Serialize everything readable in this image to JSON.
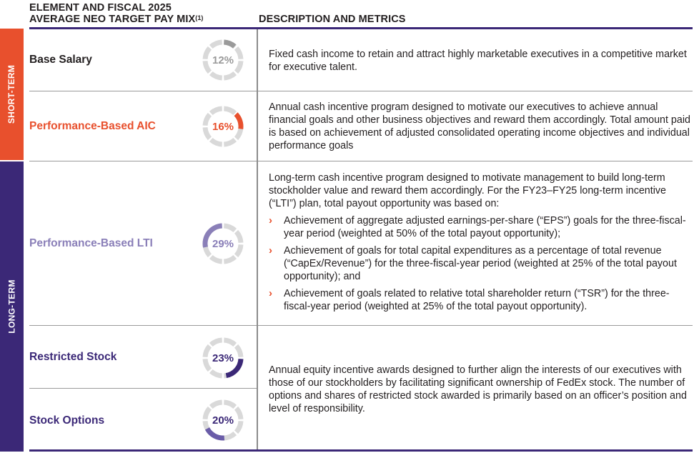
{
  "header": {
    "left_line1": "ELEMENT AND FISCAL 2025",
    "left_line2": "AVERAGE NEO TARGET PAY MIX",
    "left_footnote": "(1)",
    "right": "DESCRIPTION AND METRICS"
  },
  "side_labels": {
    "short_term": "SHORT-TERM",
    "long_term": "LONG-TERM"
  },
  "colors": {
    "orange": "#e8502d",
    "navy": "#3b2877",
    "lavender": "#8a7fb8",
    "gray": "#9a9a9a",
    "track": "#d9d9d9"
  },
  "rows": [
    {
      "label": "Base Salary",
      "percent_text": "12%",
      "percent": 12,
      "offset_percent": 0,
      "description": "Fixed cash income to retain and attract highly marketable executives in a competitive market for executive talent."
    },
    {
      "label": "Performance-Based AIC",
      "percent_text": "16%",
      "percent": 16,
      "offset_percent": 12,
      "description": "Annual cash incentive program designed to motivate our executives to achieve annual financial goals and other business objectives and reward them accordingly. Total amount paid is based on achievement of adjusted consolidated operating income objectives and individual performance goals"
    },
    {
      "label": "Performance-Based LTI",
      "percent_text": "29%",
      "percent": 29,
      "offset_percent": 71,
      "description": "Long-term cash incentive program designed to motivate management to build long-term stockholder value and reward them accordingly. For the FY23–FY25 long-term incentive (“LTI”) plan, total payout opportunity was based on:",
      "bullets": [
        "Achievement of aggregate adjusted earnings-per-share (“EPS”) goals for the three-fiscal-year period (weighted at 50% of the total payout opportunity);",
        "Achievement of goals for total capital expenditures as a percentage of total revenue (“CapEx/Revenue”) for the three-fiscal-year period (weighted at 25% of the total payout opportunity); and",
        "Achievement of goals related to relative total shareholder return (“TSR”) for the three-fiscal-year period (weighted at 25% of the total payout opportunity)."
      ]
    },
    {
      "label": "Restricted Stock",
      "percent_text": "23%",
      "percent": 23,
      "offset_percent": 25
    },
    {
      "label": "Stock Options",
      "percent_text": "20%",
      "percent": 20,
      "offset_percent": 48
    }
  ],
  "equity_description": "Annual equity incentive awards designed to further align the interests of our executives with those of our stockholders by facilitating significant ownership of FedEx stock. The number of options and shares of restricted stock awarded is primarily based on an officer’s position and level of responsibility.",
  "bullet_glyph": "›"
}
